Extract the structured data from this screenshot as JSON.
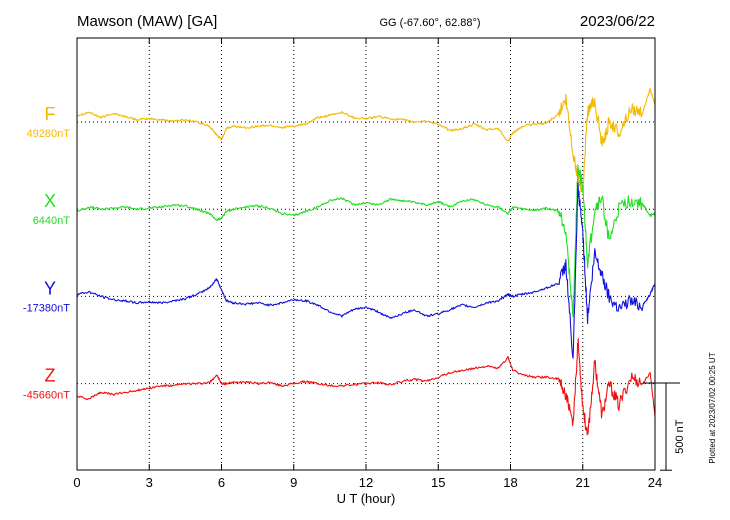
{
  "header": {
    "station": "Mawson (MAW)  [GA]",
    "coords": "GG (-67.60°,  62.88°)",
    "date": "2023/06/22"
  },
  "side_note": "Plotted at 2023/07/02 00:25 UT",
  "colors": {
    "F": "#f5b800",
    "X": "#22dd22",
    "Y": "#1111dd",
    "Z": "#ee1111",
    "axis": "#000000",
    "grid": "#000000"
  },
  "chart_data": {
    "type": "line",
    "xlabel": "U T (hour)",
    "ylabel": "",
    "xlim": [
      0,
      24
    ],
    "x_ticks": [
      0,
      3,
      6,
      9,
      12,
      15,
      18,
      21,
      24
    ],
    "x_tick_labels": [
      "0",
      "3",
      "6",
      "9",
      "12",
      "15",
      "18",
      "21",
      "24"
    ],
    "y_units": "nT",
    "y_lim_nT": [
      -800,
      1200
    ],
    "scale_bar": {
      "value": 500,
      "label": "500 nT"
    },
    "grid": "dotted",
    "series": [
      {
        "name": "F",
        "baseline_label": "49280nT",
        "baseline_offset_nT": 0,
        "x": [
          0,
          0.5,
          1,
          1.5,
          2,
          2.5,
          3,
          3.5,
          4,
          4.5,
          5,
          5.5,
          5.8,
          6.0,
          6.2,
          6.5,
          7,
          7.5,
          8,
          8.5,
          9,
          9.5,
          10,
          10.5,
          11,
          11.5,
          12,
          12.5,
          13,
          13.5,
          14,
          14.5,
          15,
          15.5,
          16,
          16.5,
          17,
          17.5,
          17.9,
          18.1,
          18.5,
          19,
          19.5,
          20,
          20.3,
          20.6,
          20.8,
          21.0,
          21.2,
          21.5,
          21.8,
          22.1,
          22.5,
          23,
          23.5,
          23.8,
          24
        ],
        "values": [
          30,
          45,
          20,
          40,
          25,
          10,
          15,
          10,
          5,
          10,
          0,
          -20,
          -60,
          -80,
          -30,
          -20,
          -25,
          -20,
          -15,
          -25,
          -20,
          -10,
          20,
          30,
          45,
          20,
          15,
          25,
          15,
          10,
          0,
          5,
          -10,
          -40,
          -30,
          -10,
          -35,
          -30,
          -90,
          -50,
          -20,
          -10,
          -5,
          40,
          100,
          -150,
          -250,
          -320,
          50,
          100,
          -100,
          0,
          -50,
          60,
          50,
          150,
          80
        ]
      },
      {
        "name": "X",
        "baseline_label": "6440nT",
        "baseline_offset_nT": -400,
        "x": [
          0,
          0.5,
          1,
          1.5,
          2,
          2.5,
          3,
          3.5,
          4,
          4.5,
          5,
          5.5,
          5.8,
          6.0,
          6.2,
          6.5,
          7,
          7.5,
          8,
          8.5,
          9,
          9.5,
          10,
          10.5,
          11,
          11.5,
          12,
          12.5,
          13,
          13.5,
          14,
          14.5,
          15,
          15.5,
          16,
          16.5,
          17,
          17.5,
          17.9,
          18.1,
          18.5,
          19,
          19.5,
          20,
          20.3,
          20.6,
          20.8,
          21.0,
          21.2,
          21.5,
          21.8,
          22.1,
          22.5,
          23,
          23.5,
          23.8,
          24
        ],
        "values": [
          -10,
          10,
          0,
          5,
          10,
          0,
          5,
          10,
          20,
          15,
          0,
          -20,
          -50,
          -40,
          -10,
          0,
          10,
          15,
          5,
          -20,
          -30,
          -10,
          10,
          40,
          50,
          20,
          30,
          20,
          45,
          40,
          30,
          20,
          35,
          10,
          40,
          45,
          20,
          10,
          -20,
          10,
          0,
          -5,
          5,
          -10,
          -100,
          -500,
          200,
          100,
          -250,
          0,
          50,
          -150,
          0,
          40,
          20,
          -30,
          -20
        ]
      },
      {
        "name": "Y",
        "baseline_label": "-17380nT",
        "baseline_offset_nT": -800,
        "x": [
          0,
          0.5,
          1,
          1.5,
          2,
          2.5,
          3,
          3.5,
          4,
          4.5,
          5,
          5.5,
          5.8,
          6.0,
          6.2,
          6.5,
          7,
          7.5,
          8,
          8.5,
          9,
          9.5,
          10,
          10.5,
          11,
          11.5,
          12,
          12.5,
          13,
          13.5,
          14,
          14.5,
          15,
          15.5,
          16,
          16.5,
          17,
          17.5,
          17.9,
          18.1,
          18.5,
          19,
          19.5,
          20,
          20.3,
          20.6,
          20.8,
          21.0,
          21.2,
          21.5,
          21.8,
          22.1,
          22.5,
          23,
          23.5,
          23.8,
          24
        ],
        "values": [
          10,
          20,
          0,
          -15,
          -20,
          -30,
          -25,
          -30,
          -20,
          -10,
          10,
          40,
          80,
          30,
          -20,
          -30,
          -35,
          -30,
          -40,
          -30,
          -15,
          -20,
          -40,
          -70,
          -90,
          -60,
          -50,
          -70,
          -100,
          -80,
          -60,
          -90,
          -80,
          -60,
          -40,
          -50,
          -30,
          -20,
          10,
          0,
          10,
          20,
          40,
          60,
          150,
          -300,
          500,
          300,
          -100,
          200,
          100,
          0,
          -50,
          -20,
          -40,
          10,
          60
        ]
      },
      {
        "name": "Z",
        "baseline_label": "-45660nT",
        "baseline_offset_nT": -1200,
        "x": [
          0,
          0.5,
          1,
          1.5,
          2,
          2.5,
          3,
          3.5,
          4,
          4.5,
          5,
          5.5,
          5.8,
          6.0,
          6.2,
          6.5,
          7,
          7.5,
          8,
          8.5,
          9,
          9.5,
          10,
          10.5,
          11,
          11.5,
          12,
          12.5,
          13,
          13.5,
          14,
          14.5,
          15,
          15.5,
          16,
          16.5,
          17,
          17.5,
          17.9,
          18.1,
          18.5,
          19,
          19.5,
          20,
          20.3,
          20.6,
          20.8,
          21.0,
          21.2,
          21.5,
          21.8,
          22.1,
          22.5,
          23,
          23.5,
          23.8,
          24
        ],
        "values": [
          -60,
          -70,
          -40,
          -50,
          -40,
          -30,
          -20,
          -10,
          -10,
          0,
          0,
          5,
          40,
          0,
          0,
          5,
          10,
          0,
          5,
          -10,
          0,
          10,
          0,
          -10,
          -10,
          -5,
          0,
          5,
          -5,
          10,
          20,
          10,
          30,
          50,
          60,
          70,
          80,
          70,
          120,
          60,
          40,
          30,
          30,
          20,
          -50,
          -200,
          200,
          -100,
          -250,
          100,
          -150,
          0,
          -100,
          30,
          0,
          50,
          -150
        ]
      }
    ]
  }
}
